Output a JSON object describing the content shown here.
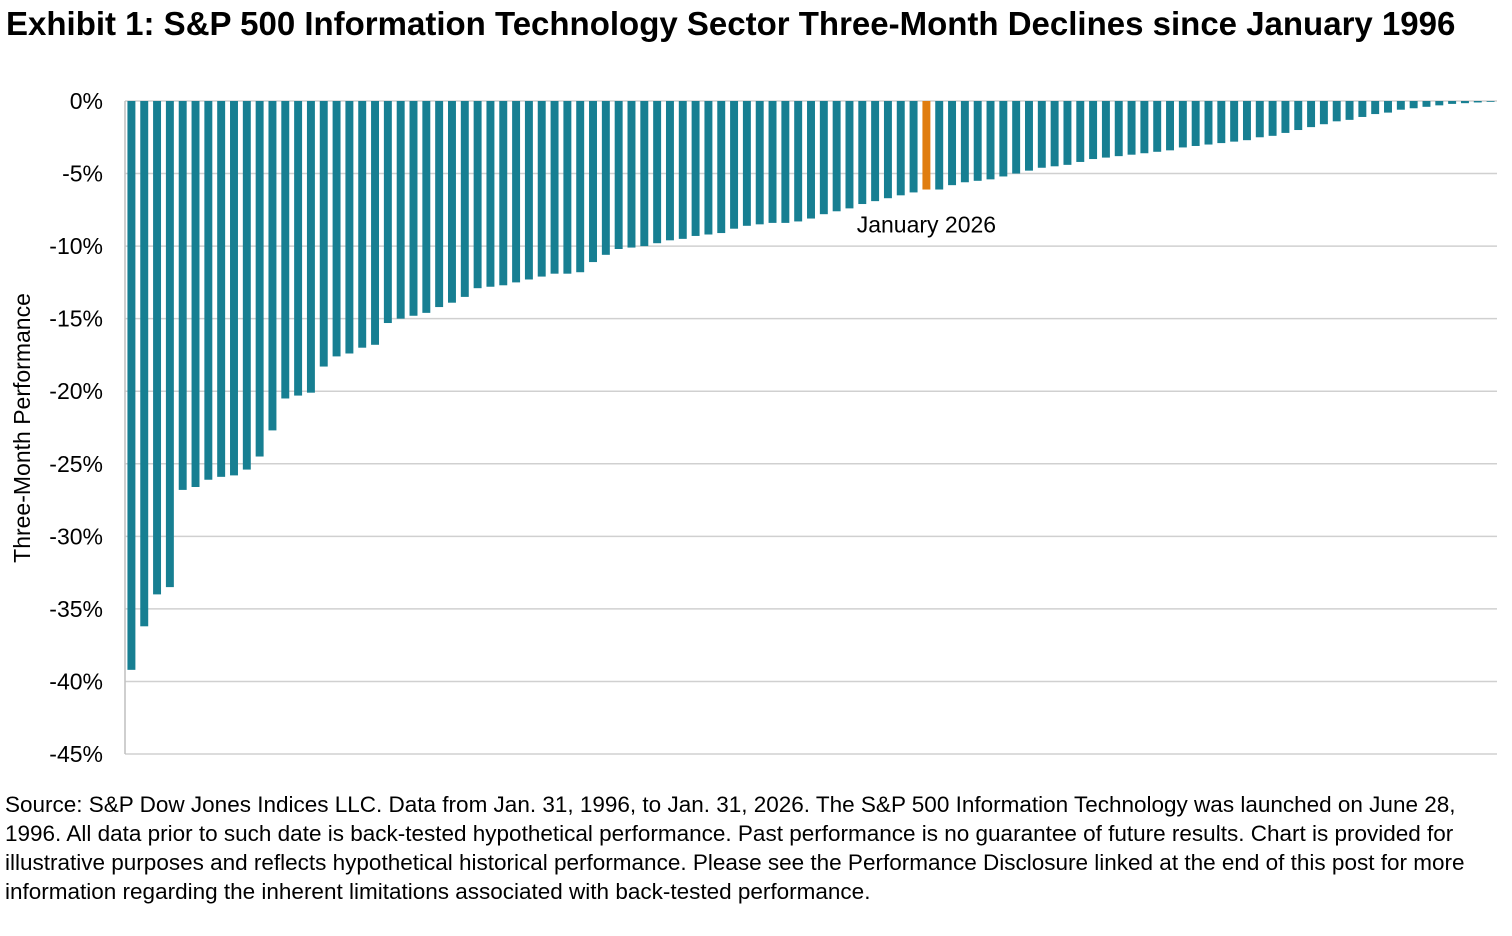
{
  "title": "Exhibit 1: S&P 500 Information Technology Sector Three-Month Declines since January 1996",
  "source_note": "Source: S&P Dow Jones Indices LLC. Data from Jan. 31, 1996, to Jan. 31, 2026. The S&P 500 Information Technology was launched on June 28, 1996. All data prior to such date is back-tested hypothetical performance. Past performance is no guarantee of future results. Chart is provided for illustrative purposes and reflects hypothetical historical performance. Please see the Performance Disclosure linked at the end of this post for more information regarding the inherent limitations associated with back-tested performance.",
  "colors": {
    "bar": "#177f92",
    "highlight": "#e07d10",
    "grid": "#d0d0d0",
    "axis": "#bfbfbf"
  },
  "chart_data": {
    "type": "bar",
    "title": "Exhibit 1: S&P 500 Information Technology Sector Three-Month Declines since January 1996",
    "xlabel": "",
    "ylabel": "Three-Month Performance",
    "ylim": [
      -45,
      0
    ],
    "yticks": [
      0,
      -5,
      -10,
      -15,
      -20,
      -25,
      -30,
      -35,
      -40,
      -45
    ],
    "ytick_labels": [
      "0%",
      "-5%",
      "-10%",
      "-15%",
      "-20%",
      "-25%",
      "-30%",
      "-35%",
      "-40%",
      "-45%"
    ],
    "grid": true,
    "sorted": "ascending",
    "highlight_index": 62,
    "annotation": {
      "text": "January 2026",
      "index": 62
    },
    "values": [
      -39.2,
      -36.2,
      -34.0,
      -33.5,
      -26.8,
      -26.6,
      -26.1,
      -25.9,
      -25.8,
      -25.4,
      -24.5,
      -22.7,
      -20.5,
      -20.3,
      -20.1,
      -18.3,
      -17.6,
      -17.4,
      -17.0,
      -16.8,
      -15.3,
      -15.0,
      -14.8,
      -14.6,
      -14.2,
      -13.9,
      -13.5,
      -12.9,
      -12.8,
      -12.7,
      -12.5,
      -12.3,
      -12.1,
      -11.9,
      -11.9,
      -11.8,
      -11.1,
      -10.6,
      -10.2,
      -10.1,
      -10.0,
      -9.8,
      -9.6,
      -9.5,
      -9.3,
      -9.2,
      -9.1,
      -8.8,
      -8.6,
      -8.5,
      -8.4,
      -8.4,
      -8.3,
      -8.1,
      -7.8,
      -7.6,
      -7.4,
      -7.1,
      -6.9,
      -6.7,
      -6.5,
      -6.3,
      -6.1,
      -6.1,
      -5.8,
      -5.6,
      -5.5,
      -5.4,
      -5.2,
      -5.0,
      -4.8,
      -4.6,
      -4.5,
      -4.4,
      -4.2,
      -4.0,
      -3.9,
      -3.8,
      -3.7,
      -3.6,
      -3.5,
      -3.4,
      -3.2,
      -3.1,
      -3.0,
      -2.9,
      -2.8,
      -2.7,
      -2.5,
      -2.4,
      -2.2,
      -2.0,
      -1.8,
      -1.6,
      -1.4,
      -1.3,
      -1.1,
      -0.9,
      -0.8,
      -0.6,
      -0.5,
      -0.4,
      -0.3,
      -0.2,
      -0.15,
      -0.1,
      -0.05
    ]
  }
}
